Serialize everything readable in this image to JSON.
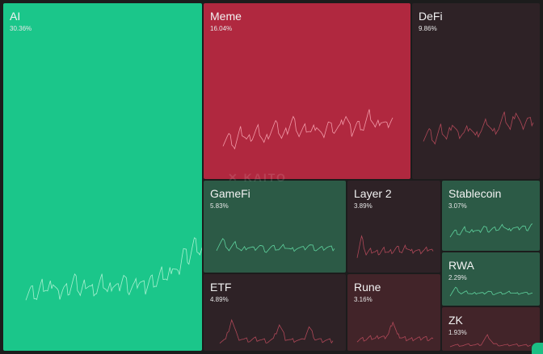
{
  "watermark": "✕ KAITO",
  "colors": {
    "ai_bg": "#1bc68a",
    "meme_bg": "#b0283f",
    "dark_bg": "#2e2226"
  },
  "tiles": [
    {
      "name": "AI",
      "pct": "30.36%",
      "color": "#1bc68a",
      "line": "#a8f0d0",
      "spark": [
        0.22,
        0.3,
        0.18,
        0.35,
        0.25,
        0.4,
        0.2,
        0.32,
        0.28,
        0.45,
        0.22,
        0.38,
        0.3,
        0.26,
        0.42,
        0.24,
        0.36,
        0.3,
        0.48,
        0.28,
        0.34,
        0.4,
        0.3,
        0.44,
        0.36,
        0.52,
        0.4,
        0.62,
        0.48,
        0.85,
        0.7,
        0.95,
        0.78,
        0.88
      ]
    },
    {
      "name": "Meme",
      "pct": "16.04%",
      "color": "#b0283f",
      "line": "#f29aa8",
      "spark": [
        0.3,
        0.45,
        0.2,
        0.55,
        0.35,
        0.4,
        0.6,
        0.3,
        0.5,
        0.7,
        0.4,
        0.55,
        0.8,
        0.45,
        0.6,
        0.5,
        0.65,
        0.4,
        0.72,
        0.55,
        0.62,
        0.85,
        0.5,
        0.7,
        0.58,
        0.9,
        0.6,
        0.75,
        0.65,
        0.8
      ]
    },
    {
      "name": "DeFi",
      "pct": "9.86%",
      "color": "#2e2226",
      "line": "#b04858",
      "spark": [
        0.4,
        0.55,
        0.3,
        0.6,
        0.35,
        0.7,
        0.45,
        0.5,
        0.65,
        0.4,
        0.55,
        0.75,
        0.5,
        0.6,
        0.85,
        0.55,
        0.95,
        0.6,
        0.8,
        0.7
      ]
    },
    {
      "name": "GameFi",
      "pct": "5.83%",
      "color": "#2c5a46",
      "line": "#5fd49f",
      "spark": [
        0.4,
        0.7,
        0.35,
        0.55,
        0.3,
        0.45,
        0.38,
        0.5,
        0.32,
        0.44,
        0.36,
        0.48,
        0.34,
        0.42,
        0.38,
        0.5,
        0.36,
        0.4,
        0.45,
        0.38
      ]
    },
    {
      "name": "Layer 2",
      "pct": "3.89%",
      "color": "#2e2226",
      "line": "#b04858",
      "spark": [
        0.2,
        0.8,
        0.25,
        0.35,
        0.3,
        0.28,
        0.4,
        0.3,
        0.35,
        0.45,
        0.3,
        0.5,
        0.32,
        0.38,
        0.3,
        0.36,
        0.42,
        0.33
      ]
    },
    {
      "name": "Stablecoin",
      "pct": "3.07%",
      "color": "#2c5a46",
      "line": "#5fd49f",
      "spark": [
        0.3,
        0.5,
        0.35,
        0.6,
        0.4,
        0.55,
        0.45,
        0.7,
        0.5,
        0.6,
        0.55,
        0.75,
        0.5,
        0.65,
        0.58,
        0.7,
        0.55,
        0.8
      ]
    },
    {
      "name": "ETF",
      "pct": "4.89%",
      "color": "#2e2226",
      "line": "#b04858",
      "spark": [
        0.1,
        0.15,
        0.9,
        0.2,
        0.15,
        0.12,
        0.18,
        0.14,
        0.1,
        0.15,
        0.7,
        0.2,
        0.12,
        0.15,
        0.1,
        0.6,
        0.18,
        0.12,
        0.14,
        0.1
      ]
    },
    {
      "name": "Rune",
      "pct": "3.16%",
      "color": "#422429",
      "line": "#b04858",
      "spark": [
        0.15,
        0.2,
        0.18,
        0.25,
        0.2,
        0.3,
        0.25,
        0.4,
        0.95,
        0.35,
        0.25,
        0.2,
        0.18,
        0.22,
        0.2,
        0.25,
        0.18,
        0.2
      ]
    },
    {
      "name": "RWA",
      "pct": "2.29%",
      "color": "#2c5a46",
      "line": "#5fd49f",
      "spark": [
        0.3,
        0.8,
        0.4,
        0.5,
        0.35,
        0.45,
        0.4,
        0.55,
        0.38,
        0.42,
        0.4,
        0.5,
        0.38,
        0.45,
        0.4,
        0.42
      ]
    },
    {
      "name": "ZK",
      "pct": "1.93%",
      "color": "#422429",
      "line": "#b04858",
      "spark": [
        0.15,
        0.2,
        0.18,
        0.22,
        0.2,
        0.25,
        0.95,
        0.3,
        0.2,
        0.18,
        0.22,
        0.2,
        0.18,
        0.2
      ]
    }
  ]
}
